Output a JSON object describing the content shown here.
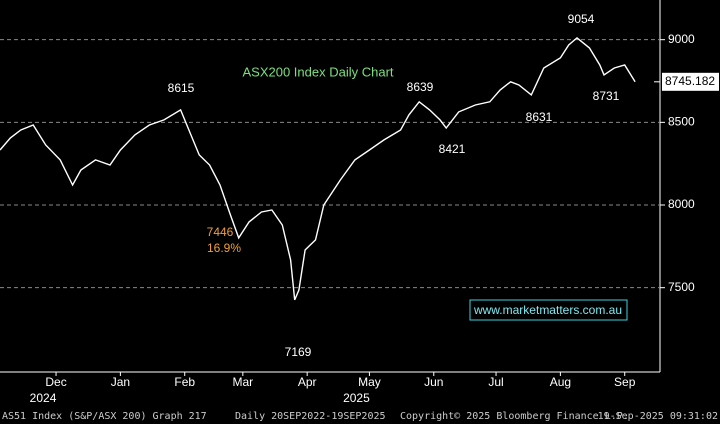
{
  "chart_data": {
    "type": "line",
    "title": "ASX200 Index Daily Chart",
    "x": [
      0,
      5,
      10,
      16,
      22,
      29,
      35,
      39,
      46,
      53,
      58,
      65,
      72,
      79,
      87,
      91,
      96,
      101,
      106,
      111,
      115,
      120,
      126,
      131,
      136,
      140,
      142,
      144,
      147,
      152,
      156,
      164,
      171,
      178,
      185,
      193,
      197,
      202,
      207,
      212,
      215,
      221,
      229,
      236,
      241,
      246,
      250,
      256,
      262,
      270,
      274,
      278,
      284,
      289,
      291,
      296,
      301,
      306
    ],
    "series": [
      {
        "name": "AS51 Index",
        "color": "#ffffff",
        "values": [
          8333,
          8406,
          8454,
          8484,
          8363,
          8273,
          8121,
          8212,
          8273,
          8242,
          8333,
          8424,
          8484,
          8515,
          8575,
          8454,
          8303,
          8242,
          8121,
          7940,
          7801,
          7898,
          7958,
          7970,
          7879,
          7668,
          7426,
          7486,
          7728,
          7789,
          8000,
          8152,
          8273,
          8333,
          8394,
          8454,
          8545,
          8624,
          8575,
          8515,
          8466,
          8563,
          8605,
          8624,
          8696,
          8745,
          8726,
          8666,
          8829,
          8890,
          8968,
          9011,
          8950,
          8847,
          8787,
          8829,
          8847,
          8745
        ]
      }
    ],
    "xlim": [
      0,
      318
    ],
    "xticks": [
      {
        "value": 27,
        "label": "Dec"
      },
      {
        "value": 58,
        "label": "Jan"
      },
      {
        "value": 89,
        "label": "Feb"
      },
      {
        "value": 117,
        "label": "Mar"
      },
      {
        "value": 148,
        "label": "Apr"
      },
      {
        "value": 178,
        "label": "May"
      },
      {
        "value": 209,
        "label": "Jun"
      },
      {
        "value": 239,
        "label": "Jul"
      },
      {
        "value": 270,
        "label": "Aug"
      },
      {
        "value": 301,
        "label": "Sep"
      }
    ],
    "year_ticks": [
      {
        "value": 27,
        "label": "2024"
      },
      {
        "value": 178,
        "label": "2025"
      }
    ],
    "ylim": [
      6990,
      9240
    ],
    "yticks": [
      7500,
      8000,
      8500,
      9000
    ],
    "grid": true,
    "last_price": {
      "value": 8745.182,
      "label": "8745.182"
    },
    "annotations": [
      {
        "label": "8615"
      },
      {
        "label": "8639"
      },
      {
        "label": "8421"
      },
      {
        "label": "8631"
      },
      {
        "label": "9054"
      },
      {
        "label": "8731"
      },
      {
        "label": "7169"
      },
      {
        "label": "7446",
        "color": "#f0a030"
      },
      {
        "label": "16.9%",
        "color": "#f0a030"
      }
    ],
    "watermark": "www.marketmatters.com.au",
    "footer": [
      "AS51 Index (S&P/ASX 200) Graph 217",
      "Daily 20SEP2022-19SEP2025",
      "Copyright© 2025 Bloomberg Finance L.P.",
      "19-Sep-2025 09:31:02"
    ]
  }
}
